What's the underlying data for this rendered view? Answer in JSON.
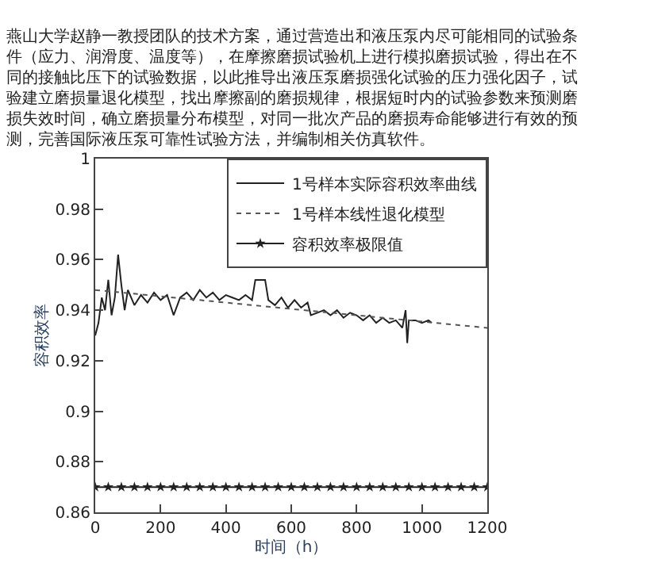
{
  "chart_data": {
    "type": "line",
    "annotations": [
      "燕山大学赵静一教授团队的技术方案，通过营造出和液压泵内尽可能相同的试验条件（应力、润滑度、温度等），在摩擦磨损试验机上进行模拟磨损试验，得出在不同的接触比压下的试验数据，以此推导出液压泵磨损强化试验的压力强化因子，试验建立磨损量退化模型，找出摩擦副的磨损规律，根据短时内的试验参数来预测磨损失效时间，确立磨损量分布模型，对同一批次产品的磨损寿命能够进行有效的预测，完善国际液压泵可靠性试验方法，并编制相关仿真软件。"
    ],
    "xlabel": "时间（h）",
    "ylabel": "容积效率",
    "xlim": [
      0,
      1200
    ],
    "xticks": [
      0,
      200,
      400,
      600,
      800,
      1000,
      1200
    ],
    "ylim": [
      0.86,
      1
    ],
    "yticks": [
      0.86,
      0.88,
      0.9,
      0.92,
      0.94,
      0.96,
      0.98,
      1
    ],
    "legend": "top right",
    "series": [
      {
        "name": "1号样本实际容积效率曲线",
        "color": "#222222",
        "line_style": "solid",
        "marker": "none",
        "x": [
          0,
          10,
          20,
          30,
          40,
          50,
          60,
          70,
          80,
          90,
          100,
          120,
          140,
          160,
          180,
          200,
          220,
          240,
          260,
          280,
          300,
          320,
          340,
          360,
          380,
          400,
          420,
          440,
          460,
          480,
          490,
          520,
          530,
          550,
          570,
          590,
          610,
          630,
          650,
          660,
          680,
          700,
          720,
          740,
          760,
          780,
          800,
          820,
          840,
          860,
          880,
          900,
          920,
          940,
          950,
          955,
          960,
          980,
          1000,
          1020,
          1030
        ],
        "values": [
          0.93,
          0.935,
          0.945,
          0.94,
          0.952,
          0.938,
          0.945,
          0.962,
          0.95,
          0.94,
          0.948,
          0.942,
          0.946,
          0.943,
          0.947,
          0.944,
          0.946,
          0.938,
          0.945,
          0.947,
          0.944,
          0.948,
          0.945,
          0.947,
          0.944,
          0.946,
          0.945,
          0.944,
          0.946,
          0.944,
          0.952,
          0.952,
          0.944,
          0.942,
          0.945,
          0.941,
          0.944,
          0.941,
          0.943,
          0.938,
          0.939,
          0.94,
          0.938,
          0.94,
          0.937,
          0.939,
          0.938,
          0.936,
          0.938,
          0.935,
          0.937,
          0.935,
          0.936,
          0.933,
          0.94,
          0.927,
          0.936,
          0.936,
          0.935,
          0.936,
          0.935
        ]
      },
      {
        "name": "1号样本线性退化模型",
        "color": "#555555",
        "line_style": "dotted",
        "marker": "none",
        "x": [
          0,
          1200
        ],
        "values": [
          0.948,
          0.933
        ]
      },
      {
        "name": "容积效率极限值",
        "color": "#222222",
        "line_style": "solid",
        "marker": "star",
        "x": [
          0,
          40,
          80,
          120,
          160,
          200,
          240,
          280,
          320,
          360,
          400,
          440,
          480,
          520,
          560,
          600,
          640,
          680,
          720,
          760,
          800,
          840,
          880,
          920,
          960,
          1000,
          1040,
          1080,
          1120,
          1160,
          1200
        ],
        "values": [
          0.87,
          0.87,
          0.87,
          0.87,
          0.87,
          0.87,
          0.87,
          0.87,
          0.87,
          0.87,
          0.87,
          0.87,
          0.87,
          0.87,
          0.87,
          0.87,
          0.87,
          0.87,
          0.87,
          0.87,
          0.87,
          0.87,
          0.87,
          0.87,
          0.87,
          0.87,
          0.87,
          0.87,
          0.87,
          0.87,
          0.87
        ]
      }
    ]
  }
}
